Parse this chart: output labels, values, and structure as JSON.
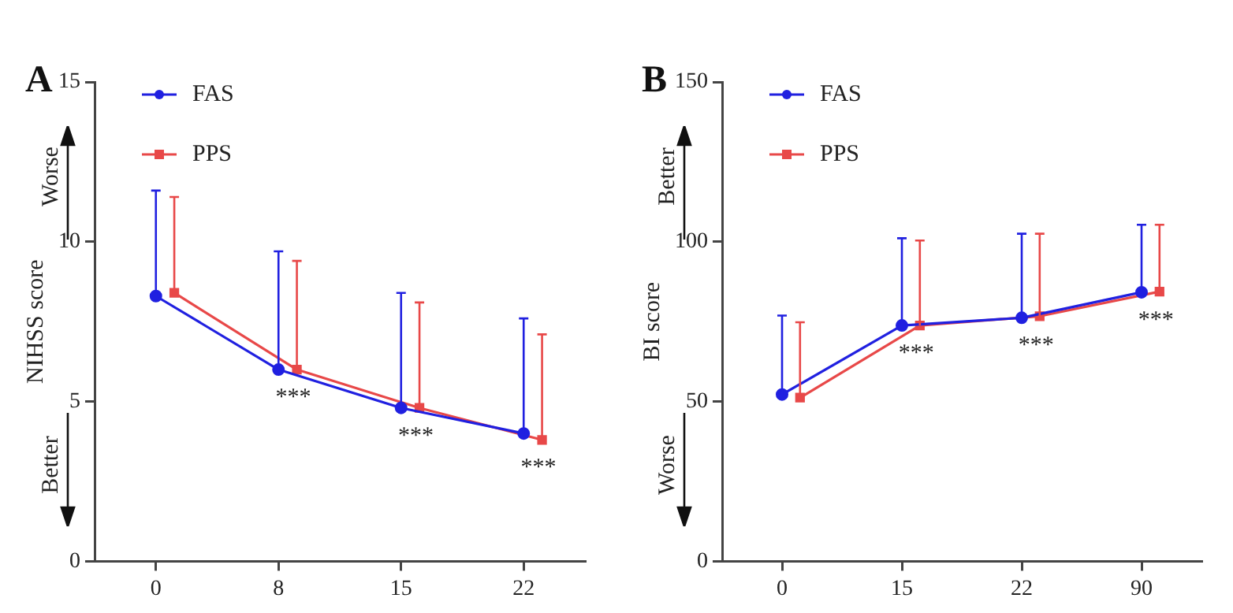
{
  "chart_data": [
    {
      "type": "line",
      "title": "A",
      "ylabel": "NIHSS score",
      "categories": [
        "0",
        "8",
        "15",
        "22"
      ],
      "ylim": [
        0,
        15
      ],
      "yticks": [
        0,
        5,
        10,
        15
      ],
      "grid": false,
      "legend": "top left",
      "line_style": "solid",
      "series": [
        {
          "name": "FAS",
          "color": "#2020e0",
          "marker": "circle",
          "values": [
            8.3,
            6.0,
            4.8,
            4.0
          ],
          "errors": [
            [
              8.3,
              11.6
            ],
            [
              6.0,
              9.7
            ],
            [
              4.8,
              8.4
            ],
            [
              4.0,
              7.6
            ]
          ]
        },
        {
          "name": "PPS",
          "color": "#e84848",
          "marker": "square",
          "values": [
            8.4,
            6.0,
            4.8,
            3.8
          ],
          "errors": [
            [
              8.4,
              11.4
            ],
            [
              6.0,
              9.4
            ],
            [
              4.8,
              8.1
            ],
            [
              3.8,
              7.1
            ]
          ]
        }
      ],
      "annotations": [
        "Worse",
        "Better",
        "***",
        "***",
        "***"
      ]
    },
    {
      "type": "line",
      "title": "B",
      "ylabel": "BI score",
      "categories": [
        "0",
        "15",
        "22",
        "90"
      ],
      "ylim": [
        0,
        150
      ],
      "yticks": [
        0,
        50,
        100,
        150
      ],
      "grid": false,
      "legend": "top left",
      "line_style": "solid",
      "series": [
        {
          "name": "FAS",
          "color": "#2020e0",
          "marker": "circle",
          "values": [
            52.2,
            73.8,
            76.2,
            84.2
          ],
          "errors": [
            [
              52.2,
              76.9
            ],
            [
              73.8,
              101.1
            ],
            [
              76.2,
              102.5
            ],
            [
              84.2,
              105.3
            ]
          ]
        },
        {
          "name": "PPS",
          "color": "#e84848",
          "marker": "square",
          "values": [
            51.2,
            73.8,
            76.7,
            84.4
          ],
          "errors": [
            [
              51.2,
              74.8
            ],
            [
              73.8,
              100.4
            ],
            [
              76.7,
              102.5
            ],
            [
              84.4,
              105.3
            ]
          ]
        }
      ],
      "annotations": [
        "Better",
        "Worse",
        "***",
        "***",
        "***"
      ]
    }
  ]
}
